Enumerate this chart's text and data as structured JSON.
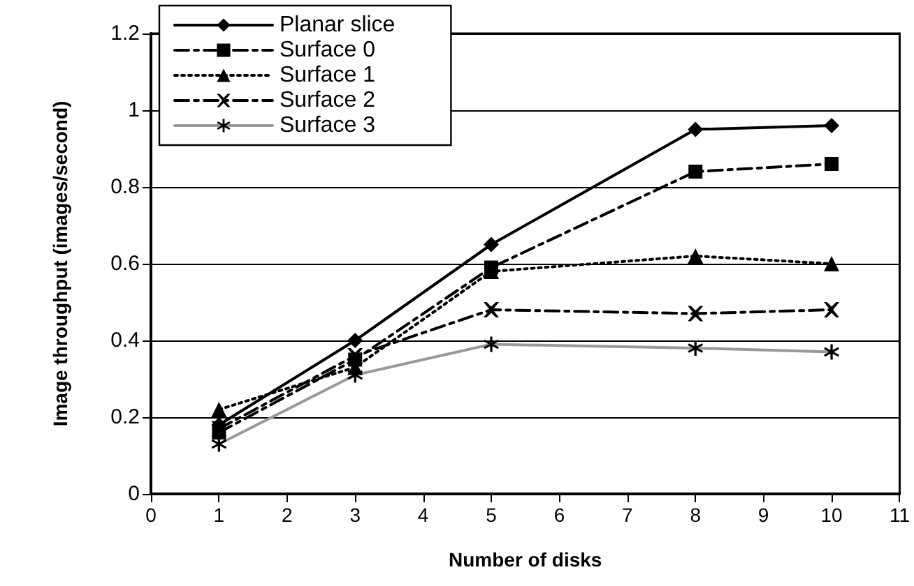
{
  "chart_data": {
    "type": "line",
    "xlabel": "Number of disks",
    "ylabel": "Image throughput (images/second)",
    "x": [
      1,
      3,
      5,
      8,
      10
    ],
    "series": [
      {
        "name": "Planar slice",
        "color": "#000000",
        "marker": "diamond",
        "line_style": "solid",
        "values": [
          0.18,
          0.4,
          0.65,
          0.95,
          0.96
        ]
      },
      {
        "name": "Surface 0",
        "color": "#000000",
        "marker": "square",
        "line_style": "dashed",
        "values": [
          0.16,
          0.35,
          0.59,
          0.84,
          0.86
        ]
      },
      {
        "name": "Surface 1",
        "color": "#000000",
        "marker": "triangle",
        "line_style": "dotted",
        "values": [
          0.22,
          0.33,
          0.58,
          0.62,
          0.6
        ]
      },
      {
        "name": "Surface 2",
        "color": "#000000",
        "marker": "cross",
        "line_style": "dashed",
        "values": [
          0.17,
          0.36,
          0.48,
          0.47,
          0.48
        ]
      },
      {
        "name": "Surface 3",
        "color": "#999999",
        "marker": "star",
        "line_style": "solid",
        "values": [
          0.13,
          0.31,
          0.39,
          0.38,
          0.37
        ]
      }
    ],
    "xlim": [
      0,
      11
    ],
    "xticks": [
      0,
      1,
      2,
      3,
      4,
      5,
      6,
      7,
      8,
      9,
      10,
      11
    ],
    "ylim": [
      0,
      1.2
    ],
    "yticks": [
      0,
      0.2,
      0.4,
      0.6,
      0.8,
      1,
      1.2
    ],
    "grid": "y",
    "legend": "top left"
  }
}
